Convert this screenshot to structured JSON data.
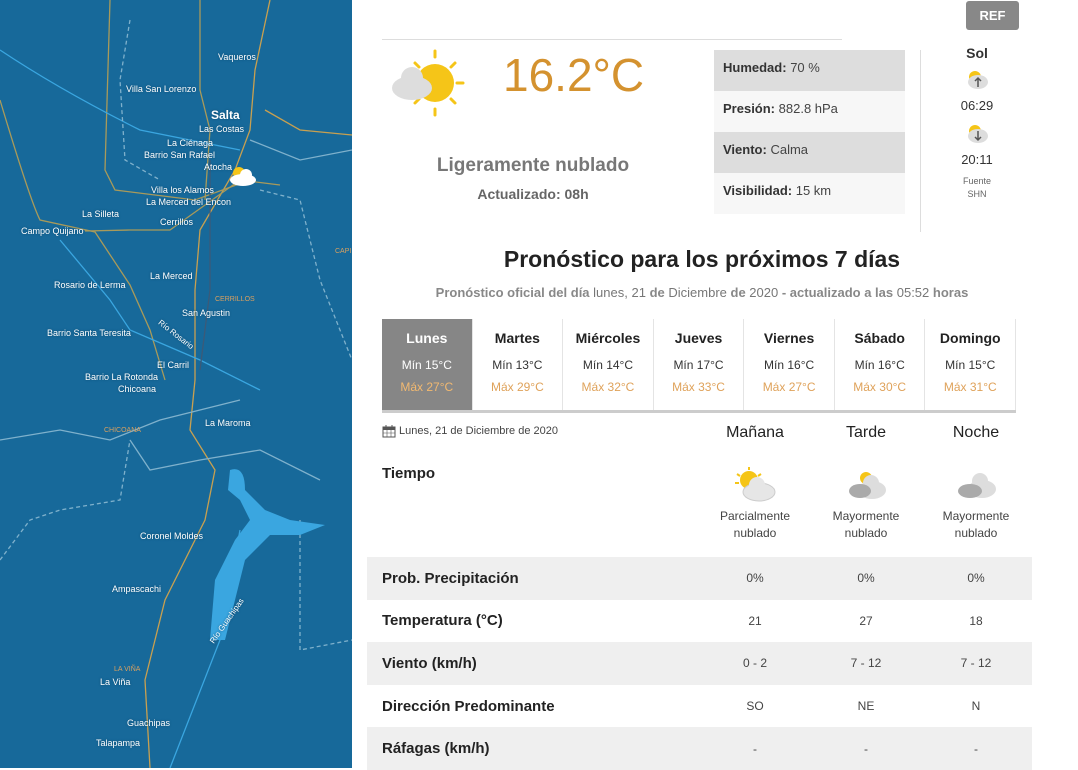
{
  "map": {
    "labels": [
      "Vaqueros",
      "Villa San Lorenzo",
      "Salta",
      "Las Costas",
      "La Ciénaga",
      "Barrio San Rafael",
      "Atocha",
      "Villa los Alamos",
      "La Merced del Encon",
      "La Silleta",
      "Campo Quijano",
      "Cerrillos",
      "La Merced",
      "Rosario de Lerma",
      "San Agustin",
      "Barrio Santa Teresita",
      "El Carril",
      "Barrio La Rotonda",
      "Chicoana",
      "La Maroma",
      "Coronel Moldes",
      "Ampascachi",
      "La Viña",
      "Guachipas",
      "Talapampa"
    ],
    "regions": [
      "CERRILLOS",
      "CHICOANA",
      "LA VIÑA",
      "CAPI"
    ],
    "rivers": [
      "Río Rosario",
      "Río Guachipas"
    ],
    "colors": {
      "water": "#17699a",
      "roads": "#c8a050",
      "lake": "#3aa6e0"
    }
  },
  "header": {
    "ref_label": "REF"
  },
  "current": {
    "temperature": "16.2°C",
    "condition": "Ligeramente nublado",
    "updated": "Actualizado: 08h",
    "icon": "partly-cloudy-icon",
    "details": [
      {
        "label": "Humedad:",
        "value": "70 %"
      },
      {
        "label": "Presión:",
        "value": "882.8 hPa"
      },
      {
        "label": "Viento:",
        "value": "Calma"
      },
      {
        "label": "Visibilidad:",
        "value": "15 km"
      }
    ]
  },
  "sun": {
    "title": "Sol",
    "sunrise": "06:29",
    "sunset": "20:11",
    "source_label": "Fuente",
    "source": "SHN"
  },
  "forecast": {
    "title": "Pronóstico para los próximos 7 días",
    "subtitle": {
      "p1": "Pronóstico oficial del día",
      "date": "lunes, 21",
      "p2": "de",
      "month": "Diciembre",
      "p3": "de",
      "year": "2020",
      "p4": "- actualizado a las",
      "time": "05:52",
      "p5": "horas"
    },
    "days": [
      {
        "name": "Lunes",
        "min": "Mín 15°C",
        "max": "Máx 27°C",
        "active": true
      },
      {
        "name": "Martes",
        "min": "Mín 13°C",
        "max": "Máx 29°C"
      },
      {
        "name": "Miércoles",
        "min": "Mín 14°C",
        "max": "Máx 32°C"
      },
      {
        "name": "Jueves",
        "min": "Mín 17°C",
        "max": "Máx 33°C"
      },
      {
        "name": "Viernes",
        "min": "Mín 16°C",
        "max": "Máx 27°C"
      },
      {
        "name": "Sábado",
        "min": "Mín 16°C",
        "max": "Máx 30°C"
      },
      {
        "name": "Domingo",
        "min": "Mín 15°C",
        "max": "Máx 31°C"
      }
    ]
  },
  "detail": {
    "date": "Lunes, 21 de Diciembre de 2020",
    "periods": [
      "Mañana",
      "Tarde",
      "Noche"
    ],
    "tiempo_label": "Tiempo",
    "weather": [
      {
        "line1": "Parcialmente",
        "line2": "nublado",
        "icon": "partly-cloudy-icon"
      },
      {
        "line1": "Mayormente",
        "line2": "nublado",
        "icon": "mostly-cloudy-icon"
      },
      {
        "line1": "Mayormente",
        "line2": "nublado",
        "icon": "cloudy-night-icon"
      }
    ],
    "rows": [
      {
        "label": "Prob. Precipitación",
        "values": [
          "0%",
          "0%",
          "0%"
        ]
      },
      {
        "label": "Temperatura (°C)",
        "values": [
          "21",
          "27",
          "18"
        ]
      },
      {
        "label": "Viento (km/h)",
        "values": [
          "0 - 2",
          "7 - 12",
          "7 - 12"
        ]
      },
      {
        "label": "Dirección Predominante",
        "values": [
          "SO",
          "NE",
          "N"
        ]
      },
      {
        "label": "Ráfagas (km/h)",
        "values": [
          "-",
          "-",
          "-"
        ]
      }
    ]
  }
}
